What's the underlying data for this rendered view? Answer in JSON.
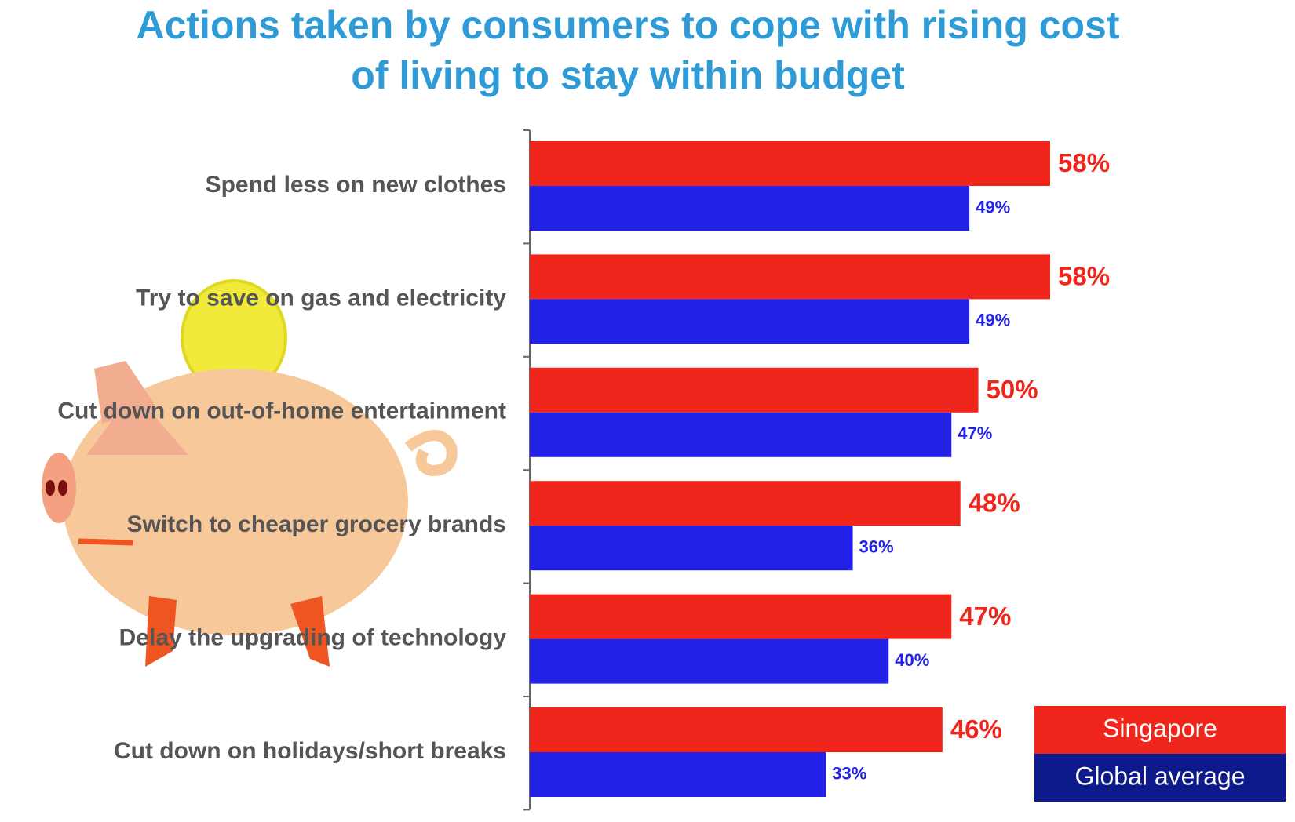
{
  "chart_data": {
    "type": "bar",
    "orientation": "horizontal",
    "title": "Actions taken by consumers to cope with rising cost of living to stay within budget",
    "categories": [
      "Spend less on new clothes",
      "Try to save on gas and electricity",
      "Cut down on out-of-home entertainment",
      "Switch to cheaper grocery brands",
      "Delay the upgrading of technology",
      "Cut down on holidays/short breaks"
    ],
    "series": [
      {
        "name": "Singapore",
        "color": "#f0261c",
        "values": [
          58,
          58,
          50,
          48,
          47,
          46
        ],
        "value_labels": [
          "58%",
          "58%",
          "50%",
          "48%",
          "47%",
          "46%"
        ]
      },
      {
        "name": "Global average",
        "color": "#2222e6",
        "legend_color": "#0c1a8c",
        "values": [
          49,
          49,
          47,
          36,
          40,
          33
        ],
        "value_labels": [
          "49%",
          "49%",
          "47%",
          "36%",
          "40%",
          "33%"
        ]
      }
    ]
  }
}
